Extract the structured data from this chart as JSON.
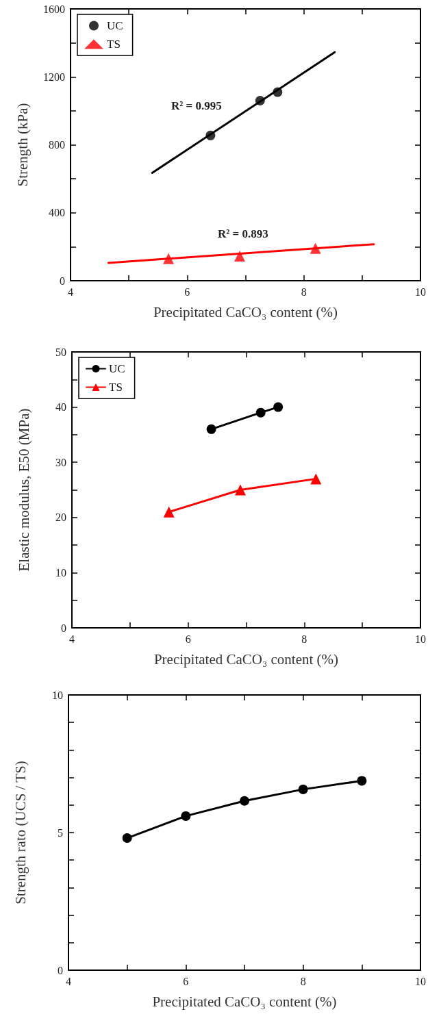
{
  "chart_data": [
    {
      "type": "scatter",
      "xlabel": "Precipitated CaCO₃ content (%)",
      "ylabel": "Strength (kPa)",
      "xlim": [
        4,
        10
      ],
      "xticks": [
        4,
        {
          "value": 5,
          "label": null
        },
        6,
        {
          "value": 7,
          "label": null
        },
        8,
        {
          "value": 9,
          "label": null
        },
        10
      ],
      "ylim": [
        0,
        1600
      ],
      "yticks": [
        0,
        {
          "value": 200,
          "label": null
        },
        400,
        {
          "value": 600,
          "label": null
        },
        800,
        {
          "value": 1000,
          "label": null
        },
        1200,
        {
          "value": 1400,
          "label": null
        },
        1600
      ],
      "legend": "top left",
      "series": [
        {
          "name": "UC",
          "marker": "circle",
          "color": "#000000",
          "x": [
            6.4,
            7.25,
            7.55
          ],
          "values": [
            855,
            1060,
            1110
          ]
        },
        {
          "name": "TS",
          "marker": "triangle",
          "color": "#ff0000",
          "x": [
            5.68,
            6.9,
            8.2
          ],
          "values": [
            130,
            145,
            190
          ]
        },
        {
          "type": "line",
          "marker": "none",
          "color": "#000000",
          "x": [
            5.4,
            8.53
          ],
          "values": [
            635,
            1345
          ]
        },
        {
          "type": "line",
          "marker": "none",
          "color": "#ff0000",
          "x": [
            4.65,
            9.2
          ],
          "values": [
            105,
            215
          ]
        }
      ],
      "annotations": [
        "R² = 0.995",
        "R² = 0.893"
      ]
    },
    {
      "type": "line",
      "xlabel": "Precipitated CaCO₃ content (%)",
      "ylabel": "Elastic modulus, E50 (MPa)",
      "xlim": [
        4,
        10
      ],
      "xticks": [
        4,
        {
          "value": 5,
          "label": null
        },
        6,
        {
          "value": 7,
          "label": null
        },
        8,
        {
          "value": 9,
          "label": null
        },
        10
      ],
      "ylim": [
        0,
        50
      ],
      "yticks": [
        0,
        {
          "value": 5,
          "label": null
        },
        10,
        {
          "value": 15,
          "label": null
        },
        20,
        {
          "value": 25,
          "label": null
        },
        30,
        {
          "value": 35,
          "label": null
        },
        40,
        {
          "value": 45,
          "label": null
        },
        50
      ],
      "legend": "top left",
      "series": [
        {
          "name": "UC",
          "marker": "circle",
          "color": "#000000",
          "x": [
            6.4,
            7.25,
            7.55
          ],
          "values": [
            36,
            39,
            40
          ]
        },
        {
          "name": "TS",
          "marker": "triangle",
          "color": "#ff0000",
          "x": [
            5.67,
            6.9,
            8.2
          ],
          "values": [
            21,
            25,
            27
          ]
        }
      ]
    },
    {
      "type": "line",
      "xlabel": "Precipitated CaCO₃ content (%)",
      "ylabel": "Strength rato (UCS / TS)",
      "xlim": [
        4,
        10
      ],
      "xticks": [
        4,
        {
          "value": 5,
          "label": null
        },
        6,
        {
          "value": 7,
          "label": null
        },
        8,
        {
          "value": 9,
          "label": null
        },
        10
      ],
      "ylim": [
        0,
        10
      ],
      "yticks": [
        0,
        {
          "value": 1,
          "label": null
        },
        {
          "value": 2,
          "label": null
        },
        {
          "value": 3,
          "label": null
        },
        {
          "value": 4,
          "label": null
        },
        5,
        {
          "value": 6,
          "label": null
        },
        {
          "value": 7,
          "label": null
        },
        {
          "value": 8,
          "label": null
        },
        {
          "value": 9,
          "label": null
        },
        10
      ],
      "marker": "circle",
      "series": [
        {
          "color": "#000000",
          "x": [
            5,
            6,
            7,
            8,
            9
          ],
          "values": [
            4.8,
            5.6,
            6.15,
            6.57,
            6.88
          ]
        }
      ]
    }
  ]
}
